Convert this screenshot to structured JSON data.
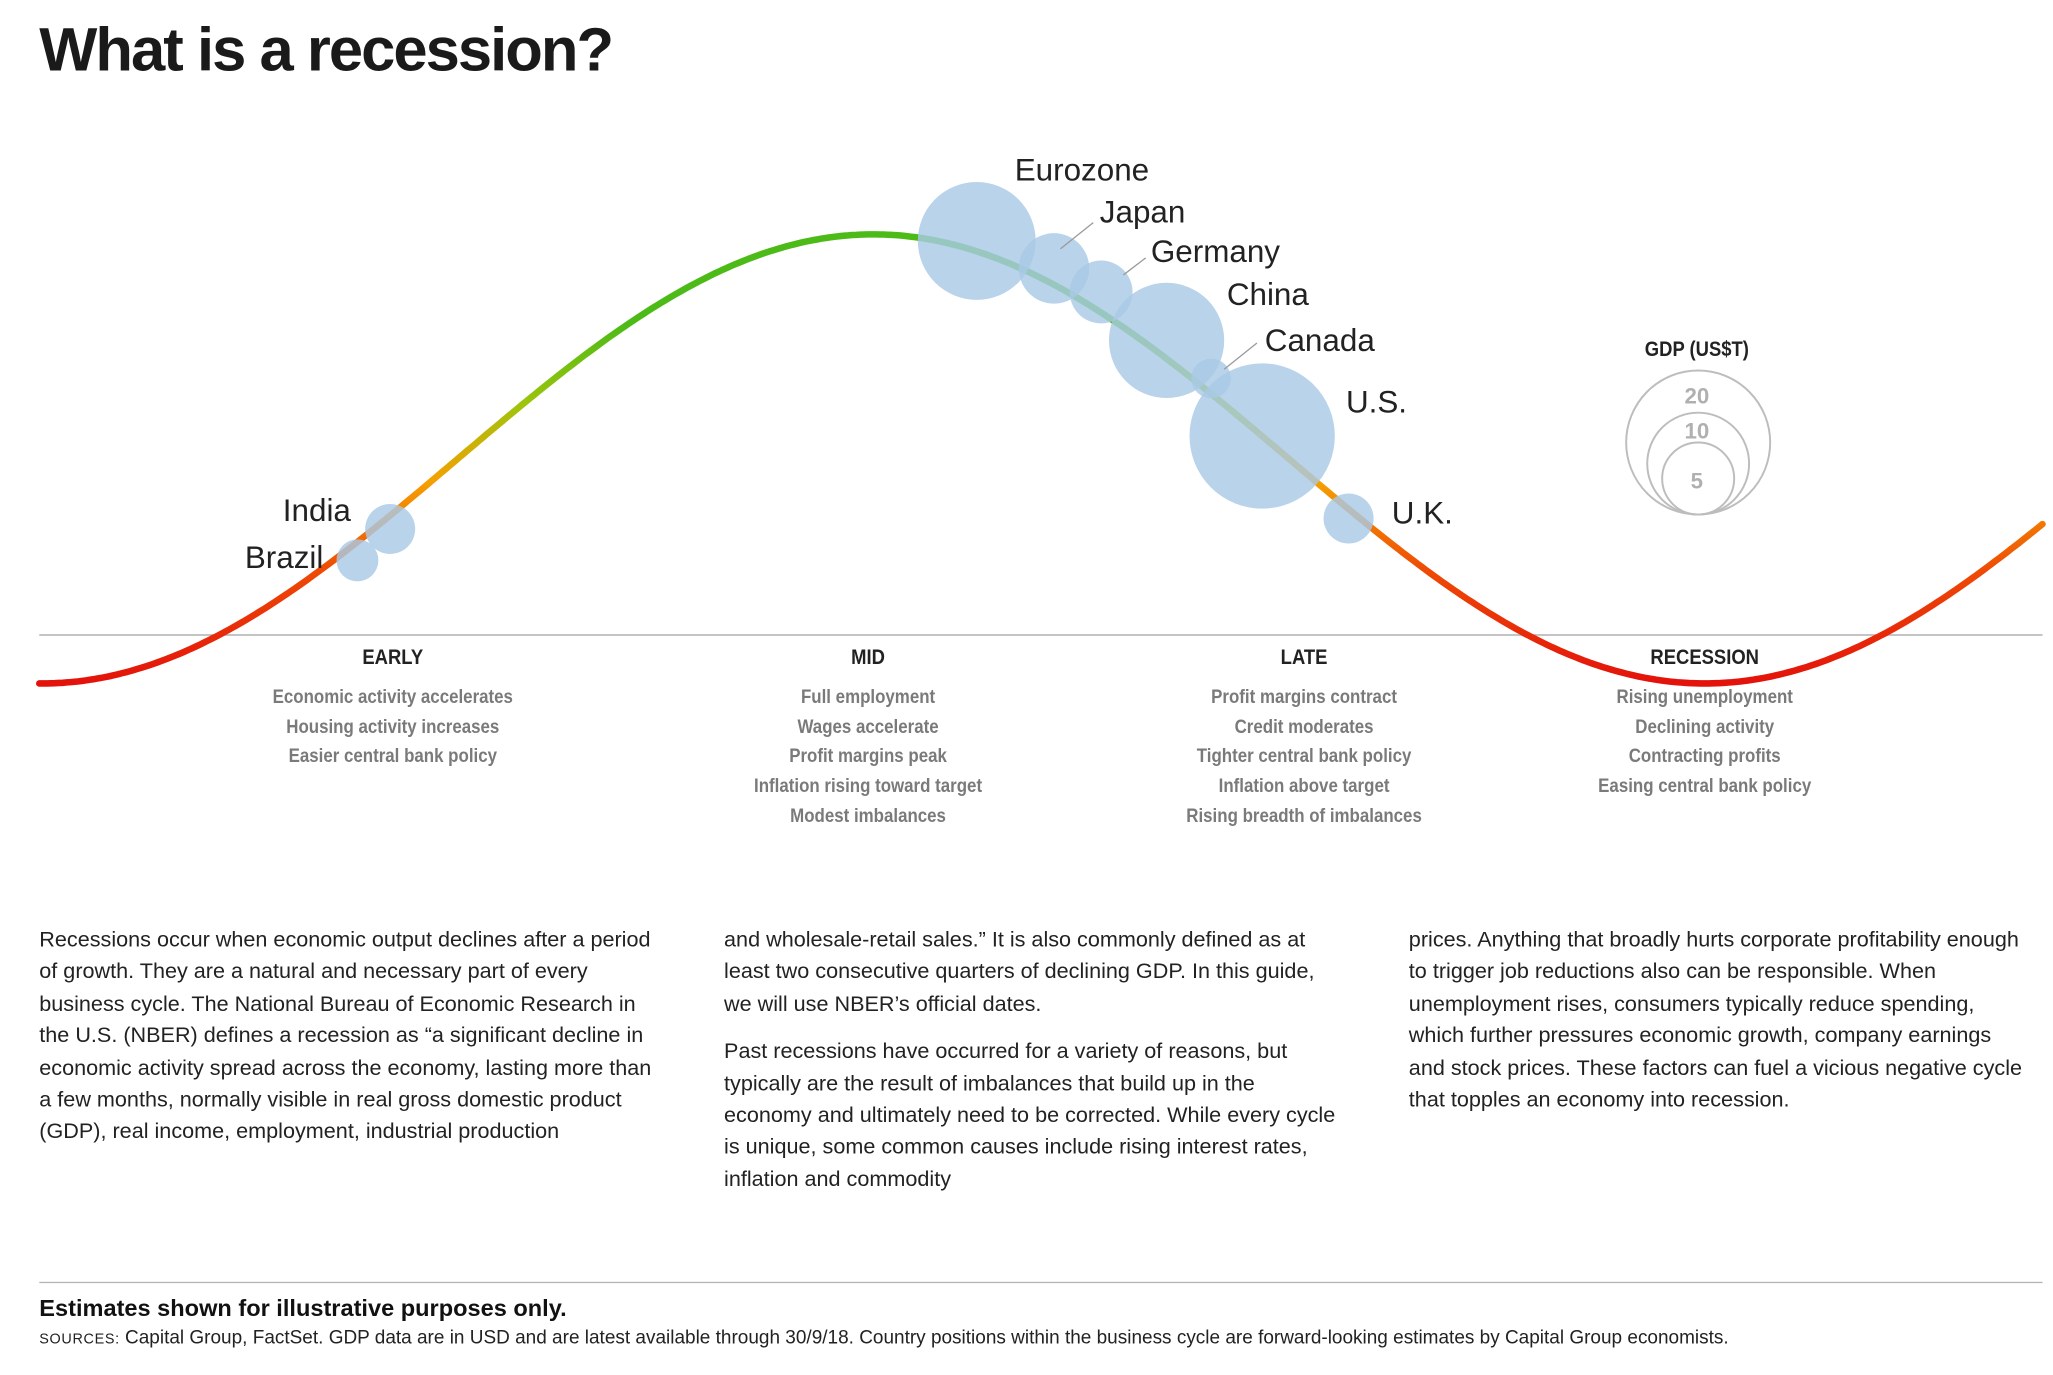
{
  "title": "What is a recession?",
  "legend": {
    "title": "GDP (US$T)",
    "sizes": [
      20,
      10,
      5
    ]
  },
  "countries": [
    {
      "name": "Eurozone",
      "gdp": 13.4
    },
    {
      "name": "Japan",
      "gdp": 4.8
    },
    {
      "name": "Germany",
      "gdp": 3.8
    },
    {
      "name": "China",
      "gdp": 12.8
    },
    {
      "name": "Canada",
      "gdp": 1.5
    },
    {
      "name": "U.S.",
      "gdp": 20.4
    },
    {
      "name": "U.K.",
      "gdp": 2.4
    },
    {
      "name": "India",
      "gdp": 2.4
    },
    {
      "name": "Brazil",
      "gdp": 1.7
    }
  ],
  "phases": [
    {
      "name": "EARLY",
      "items": [
        "Economic activity accelerates",
        "Housing activity increases",
        "Easier central bank policy"
      ]
    },
    {
      "name": "MID",
      "items": [
        "Full employment",
        "Wages accelerate",
        "Profit margins peak",
        "Inflation rising toward target",
        "Modest imbalances"
      ]
    },
    {
      "name": "LATE",
      "items": [
        "Profit margins contract",
        "Credit moderates",
        "Tighter central bank policy",
        "Inflation above target",
        "Rising breadth of imbalances"
      ]
    },
    {
      "name": "RECESSION",
      "items": [
        "Rising unemployment",
        "Declining activity",
        "Contracting profits",
        "Easing central bank policy"
      ]
    }
  ],
  "body": {
    "col1": [
      "Recessions occur when economic output declines after a period of growth. They are a natural and necessary part of every business cycle. The National Bureau of Economic Research in the U.S. (NBER) defines a recession as “a significant decline in economic activity spread across the economy, lasting more than a few months, normally visible in real gross domestic product (GDP), real income, employment, industrial production"
    ],
    "col2": [
      "and wholesale-retail sales.” It is also commonly defined as at least two consecutive quarters of declining GDP. In this guide, we will use NBER’s official dates.",
      "Past recessions have occurred for a variety of reasons, but typically are the result of imbalances that build up in the economy and ultimately need to be corrected. While every cycle is unique, some common causes include rising interest rates, inflation and commodity"
    ],
    "col3": [
      "prices. Anything that broadly hurts corporate profitability enough to trigger job reductions also can be responsible. When unemployment rises, consumers typically reduce spending, which further pressures economic growth, company earnings and stock prices. These factors can fuel a vicious negative cycle that topples an economy into recession."
    ]
  },
  "footer": {
    "note": "Estimates shown for illustrative purposes only.",
    "sources_label": "SOURCES:",
    "sources": "Capital Group, FactSet. GDP data are in USD and are latest available through 30/9/18. Country positions within the business cycle are forward-looking estimates by Capital Group economists."
  },
  "colors": {
    "bubble": "#a9c9e5",
    "curve_low": "#e3120b",
    "curve_mid": "#f5a000",
    "curve_high": "#4cbb17"
  }
}
